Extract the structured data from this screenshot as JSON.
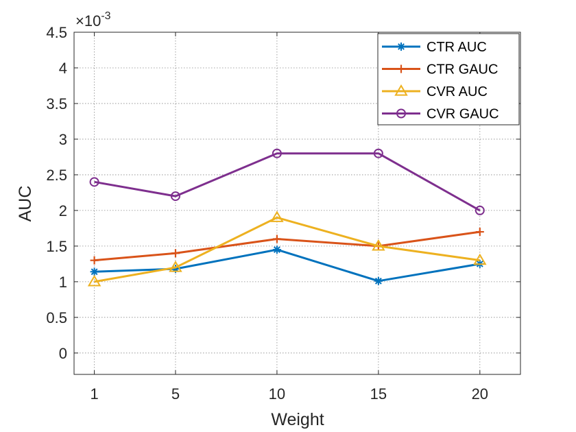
{
  "chart_data": {
    "type": "line",
    "title": "",
    "xlabel": "Weight",
    "ylabel": "AUC",
    "scale_exponent_label": "×10",
    "scale_exponent_power": "-3",
    "x": [
      1,
      5,
      10,
      15,
      20
    ],
    "x_tick_labels": [
      "1",
      "5",
      "10",
      "15",
      "20"
    ],
    "y_tick_labels": [
      "0",
      "0.5",
      "1",
      "1.5",
      "2",
      "2.5",
      "3",
      "3.5",
      "4",
      "4.5"
    ],
    "xlim": [
      0,
      22
    ],
    "ylim": [
      -0.3,
      4.5
    ],
    "grid": true,
    "legend_position": "top-right",
    "series": [
      {
        "name": "CTR AUC",
        "color": "#0072BD",
        "marker": "asterisk",
        "values": [
          1.14,
          1.18,
          1.45,
          1.01,
          1.25
        ]
      },
      {
        "name": "CTR GAUC",
        "color": "#D95319",
        "marker": "plus",
        "values": [
          1.3,
          1.4,
          1.6,
          1.5,
          1.7
        ]
      },
      {
        "name": "CVR AUC",
        "color": "#EDB120",
        "marker": "triangle",
        "values": [
          1.0,
          1.2,
          1.9,
          1.5,
          1.3
        ]
      },
      {
        "name": "CVR GAUC",
        "color": "#7E2F8E",
        "marker": "circle",
        "values": [
          2.4,
          2.2,
          2.8,
          2.8,
          2.0
        ]
      }
    ]
  }
}
